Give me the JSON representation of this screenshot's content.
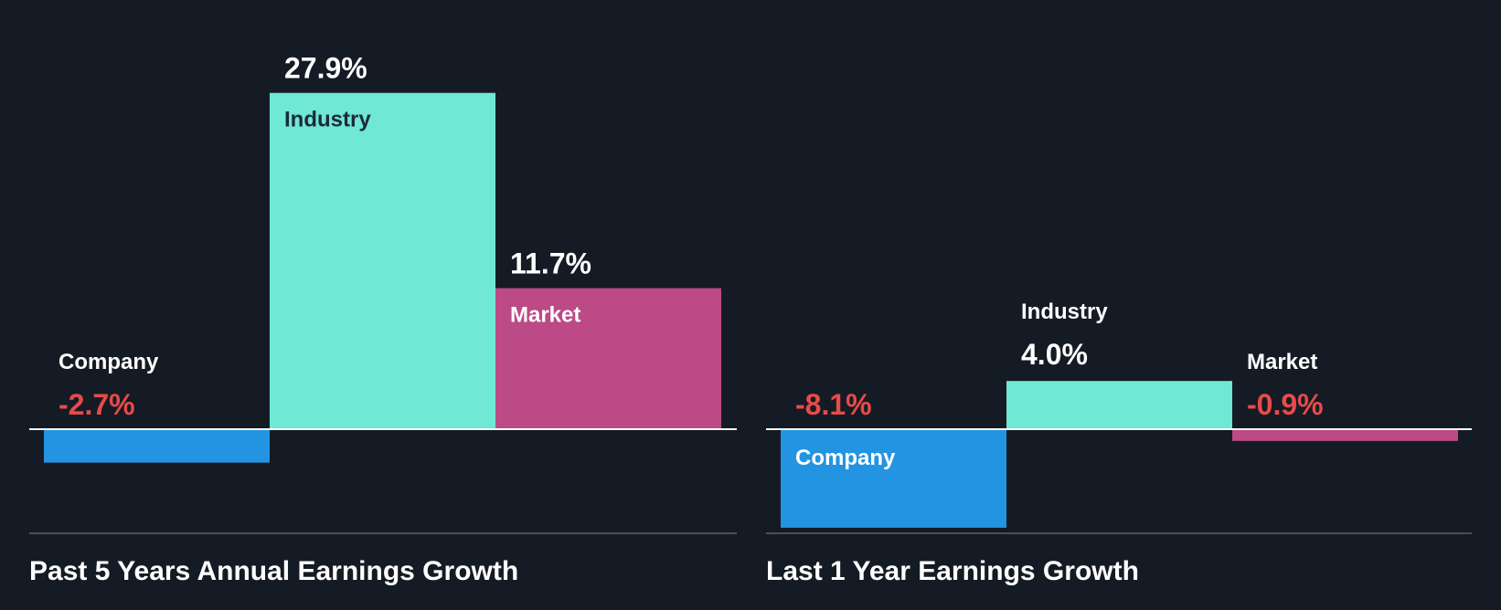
{
  "colors": {
    "background": "#151b24",
    "company": "#2394e1",
    "industry": "#6fe8d6",
    "market": "#bb4a86",
    "negative_text": "#e84a4a",
    "positive_text": "#ffffff",
    "label_on_light": "#1d2a36",
    "baseline": "#ffffff",
    "divider": "#4a505a"
  },
  "chart_data": [
    {
      "type": "bar",
      "title": "Past 5 Years Annual Earnings Growth",
      "categories": [
        "Company",
        "Industry",
        "Market"
      ],
      "values": [
        -2.7,
        27.9,
        11.7
      ],
      "value_labels": [
        "-2.7%",
        "27.9%",
        "11.7%"
      ],
      "unit": "%",
      "legend": "none"
    },
    {
      "type": "bar",
      "title": "Last 1 Year Earnings Growth",
      "categories": [
        "Company",
        "Industry",
        "Market"
      ],
      "values": [
        -8.1,
        4.0,
        -0.9
      ],
      "value_labels": [
        "-8.1%",
        "4.0%",
        "-0.9%"
      ],
      "unit": "%",
      "legend": "none"
    }
  ]
}
